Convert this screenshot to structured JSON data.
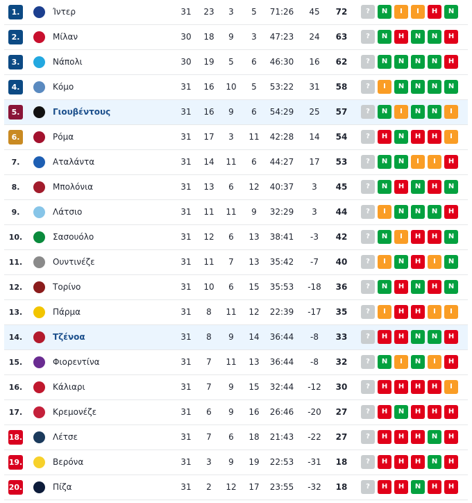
{
  "colors": {
    "champions": "#0c4a84",
    "europa": "#8a1538",
    "conference": "#c98a22",
    "relegation": "#d9001f",
    "win": "#04a13f",
    "draw": "#fa9d25",
    "loss": "#e10019",
    "upcoming": "#c9cdcf",
    "highlight": "#ebf5fe"
  },
  "rows": [
    {
      "rank": "1.",
      "team": "Ίντερ",
      "logo": "inter-logo",
      "logo_color": "#1c3f8f",
      "zone": "champions",
      "mp": "31",
      "w": "23",
      "d": "3",
      "l": "5",
      "goals": "71:26",
      "gd": "45",
      "pts": "72",
      "form": [
        "?",
        "N",
        "I",
        "I",
        "H",
        "N"
      ]
    },
    {
      "rank": "2.",
      "team": "Μίλαν",
      "logo": "milan-logo",
      "logo_color": "#c8102e",
      "zone": "champions",
      "mp": "30",
      "w": "18",
      "d": "9",
      "l": "3",
      "goals": "47:23",
      "gd": "24",
      "pts": "63",
      "form": [
        "?",
        "N",
        "H",
        "N",
        "N",
        "H"
      ]
    },
    {
      "rank": "3.",
      "team": "Νάπολι",
      "logo": "napoli-logo",
      "logo_color": "#23a8e0",
      "zone": "champions",
      "mp": "30",
      "w": "19",
      "d": "5",
      "l": "6",
      "goals": "46:30",
      "gd": "16",
      "pts": "62",
      "form": [
        "?",
        "N",
        "N",
        "N",
        "N",
        "H"
      ]
    },
    {
      "rank": "4.",
      "team": "Κόμο",
      "logo": "como-logo",
      "logo_color": "#5a8ac0",
      "zone": "champions",
      "mp": "31",
      "w": "16",
      "d": "10",
      "l": "5",
      "goals": "53:22",
      "gd": "31",
      "pts": "58",
      "form": [
        "?",
        "I",
        "N",
        "N",
        "N",
        "N"
      ]
    },
    {
      "rank": "5.",
      "team": "Γιουβέντους",
      "logo": "juventus-logo",
      "logo_color": "#111111",
      "zone": "europa",
      "highlight": true,
      "mp": "31",
      "w": "16",
      "d": "9",
      "l": "6",
      "goals": "54:29",
      "gd": "25",
      "pts": "57",
      "form": [
        "?",
        "N",
        "I",
        "N",
        "N",
        "I"
      ]
    },
    {
      "rank": "6.",
      "team": "Ρόμα",
      "logo": "roma-logo",
      "logo_color": "#a3122e",
      "zone": "conference",
      "mp": "31",
      "w": "17",
      "d": "3",
      "l": "11",
      "goals": "42:28",
      "gd": "14",
      "pts": "54",
      "form": [
        "?",
        "H",
        "N",
        "H",
        "H",
        "I"
      ]
    },
    {
      "rank": "7.",
      "team": "Αταλάντα",
      "logo": "atalanta-logo",
      "logo_color": "#1e5fb3",
      "zone": "",
      "mp": "31",
      "w": "14",
      "d": "11",
      "l": "6",
      "goals": "44:27",
      "gd": "17",
      "pts": "53",
      "form": [
        "?",
        "N",
        "N",
        "I",
        "I",
        "H"
      ]
    },
    {
      "rank": "8.",
      "team": "Μπολόνια",
      "logo": "bologna-logo",
      "logo_color": "#a21c2c",
      "zone": "",
      "mp": "31",
      "w": "13",
      "d": "6",
      "l": "12",
      "goals": "40:37",
      "gd": "3",
      "pts": "45",
      "form": [
        "?",
        "N",
        "H",
        "N",
        "H",
        "N"
      ]
    },
    {
      "rank": "9.",
      "team": "Λάτσιο",
      "logo": "lazio-logo",
      "logo_color": "#87c5e8",
      "zone": "",
      "mp": "31",
      "w": "11",
      "d": "11",
      "l": "9",
      "goals": "32:29",
      "gd": "3",
      "pts": "44",
      "form": [
        "?",
        "I",
        "N",
        "N",
        "N",
        "H"
      ]
    },
    {
      "rank": "10.",
      "team": "Σασουόλο",
      "logo": "sassuolo-logo",
      "logo_color": "#0a8a3c",
      "zone": "",
      "mp": "31",
      "w": "12",
      "d": "6",
      "l": "13",
      "goals": "38:41",
      "gd": "-3",
      "pts": "42",
      "form": [
        "?",
        "N",
        "I",
        "H",
        "H",
        "N"
      ]
    },
    {
      "rank": "11.",
      "team": "Ουντινέζε",
      "logo": "udinese-logo",
      "logo_color": "#8a8a8a",
      "zone": "",
      "mp": "31",
      "w": "11",
      "d": "7",
      "l": "13",
      "goals": "35:42",
      "gd": "-7",
      "pts": "40",
      "form": [
        "?",
        "I",
        "N",
        "H",
        "I",
        "N"
      ]
    },
    {
      "rank": "12.",
      "team": "Τορίνο",
      "logo": "torino-logo",
      "logo_color": "#8b1c1c",
      "zone": "",
      "mp": "31",
      "w": "10",
      "d": "6",
      "l": "15",
      "goals": "35:53",
      "gd": "-18",
      "pts": "36",
      "form": [
        "?",
        "N",
        "H",
        "N",
        "H",
        "N"
      ]
    },
    {
      "rank": "13.",
      "team": "Πάρμα",
      "logo": "parma-logo",
      "logo_color": "#f2c500",
      "zone": "",
      "mp": "31",
      "w": "8",
      "d": "11",
      "l": "12",
      "goals": "22:39",
      "gd": "-17",
      "pts": "35",
      "form": [
        "?",
        "I",
        "H",
        "H",
        "I",
        "I"
      ]
    },
    {
      "rank": "14.",
      "team": "Τζένοα",
      "logo": "genoa-logo",
      "logo_color": "#b31b2d",
      "zone": "",
      "highlight": true,
      "mp": "31",
      "w": "8",
      "d": "9",
      "l": "14",
      "goals": "36:44",
      "gd": "-8",
      "pts": "33",
      "form": [
        "?",
        "H",
        "H",
        "N",
        "N",
        "H"
      ]
    },
    {
      "rank": "15.",
      "team": "Φιορεντίνα",
      "logo": "fiorentina-logo",
      "logo_color": "#6a2c91",
      "zone": "",
      "mp": "31",
      "w": "7",
      "d": "11",
      "l": "13",
      "goals": "36:44",
      "gd": "-8",
      "pts": "32",
      "form": [
        "?",
        "N",
        "I",
        "N",
        "I",
        "H"
      ]
    },
    {
      "rank": "16.",
      "team": "Κάλιαρι",
      "logo": "cagliari-logo",
      "logo_color": "#c0182e",
      "zone": "",
      "mp": "31",
      "w": "7",
      "d": "9",
      "l": "15",
      "goals": "32:44",
      "gd": "-12",
      "pts": "30",
      "form": [
        "?",
        "H",
        "H",
        "H",
        "H",
        "I"
      ]
    },
    {
      "rank": "17.",
      "team": "Κρεμονέζε",
      "logo": "cremonese-logo",
      "logo_color": "#c4203a",
      "zone": "",
      "mp": "31",
      "w": "6",
      "d": "9",
      "l": "16",
      "goals": "26:46",
      "gd": "-20",
      "pts": "27",
      "form": [
        "?",
        "H",
        "N",
        "H",
        "H",
        "H"
      ]
    },
    {
      "rank": "18.",
      "team": "Λέτσε",
      "logo": "lecce-logo",
      "logo_color": "#1b3a5c",
      "zone": "relegation",
      "mp": "31",
      "w": "7",
      "d": "6",
      "l": "18",
      "goals": "21:43",
      "gd": "-22",
      "pts": "27",
      "form": [
        "?",
        "H",
        "H",
        "H",
        "N",
        "H"
      ]
    },
    {
      "rank": "19.",
      "team": "Βερόνα",
      "logo": "verona-logo",
      "logo_color": "#f7d12b",
      "zone": "relegation",
      "mp": "31",
      "w": "3",
      "d": "9",
      "l": "19",
      "goals": "22:53",
      "gd": "-31",
      "pts": "18",
      "form": [
        "?",
        "H",
        "H",
        "H",
        "N",
        "H"
      ]
    },
    {
      "rank": "20.",
      "team": "Πίζα",
      "logo": "pisa-logo",
      "logo_color": "#0d1c3a",
      "zone": "relegation",
      "mp": "31",
      "w": "2",
      "d": "12",
      "l": "17",
      "goals": "23:55",
      "gd": "-32",
      "pts": "18",
      "form": [
        "?",
        "H",
        "H",
        "N",
        "H",
        "H"
      ]
    }
  ]
}
